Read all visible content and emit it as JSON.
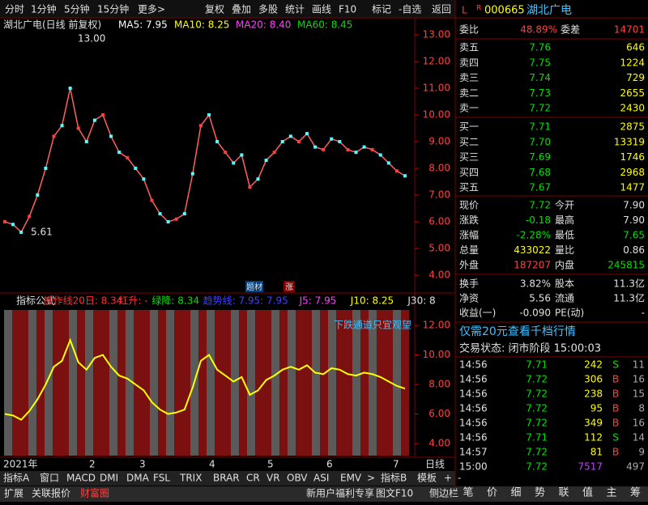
{
  "toolbar": {
    "left": [
      "分时",
      "1分钟",
      "5分钟",
      "15分钟",
      "更多>"
    ],
    "right": [
      "复权",
      "叠加",
      "多股",
      "统计",
      "画线",
      "F10",
      "标记",
      "-自选",
      "返回"
    ]
  },
  "quote_header": {
    "flags": [
      "L",
      "R"
    ],
    "code": "000665",
    "name": "湖北广电"
  },
  "main_chart": {
    "title": "湖北广电(日线 前复权)",
    "ma": [
      "MA5: 7.95",
      "MA10: 8.25",
      "MA20: 8.40",
      "MA60: 8.45"
    ],
    "ylim": [
      3.85,
      13.09
    ],
    "yticks": [
      {
        "value": 13,
        "label": "13.00"
      },
      {
        "value": 12,
        "label": "12.00"
      },
      {
        "value": 11,
        "label": "11.00"
      },
      {
        "value": 10,
        "label": "10.00"
      },
      {
        "value": 9,
        "label": "9.00"
      },
      {
        "value": 8,
        "label": "8.00"
      },
      {
        "value": 7,
        "label": "7.00"
      },
      {
        "value": 6,
        "label": "6.00"
      },
      {
        "value": 5,
        "label": "5.00"
      },
      {
        "value": 4,
        "label": "4.00"
      }
    ],
    "annotations": [
      "13.00",
      "5.61"
    ],
    "markers": [
      "题材",
      "涨"
    ],
    "closes": [
      6.0,
      5.9,
      5.61,
      6.2,
      7.0,
      8.0,
      9.2,
      9.6,
      11.0,
      9.5,
      9.0,
      9.8,
      10.0,
      9.2,
      8.6,
      8.4,
      8.0,
      7.6,
      6.8,
      6.3,
      6.0,
      6.1,
      6.3,
      7.8,
      9.6,
      10.0,
      9.0,
      8.6,
      8.2,
      8.5,
      7.3,
      7.6,
      8.3,
      8.6,
      9.0,
      9.2,
      9.0,
      9.3,
      8.8,
      8.7,
      9.1,
      9.0,
      8.7,
      8.6,
      8.8,
      8.7,
      8.5,
      8.2,
      7.9,
      7.72
    ]
  },
  "indicator_pane": {
    "header": [
      "指标公式",
      "操作线20日: 8.34",
      "红升: -",
      "绿降: 8.34",
      "趋势线: 7.95",
      ": 7.95",
      "J5: 7.95",
      "J10: 8.25",
      "J30: 8"
    ],
    "note": "下跌通道只宜观望",
    "ylim": [
      3.07,
      13.1
    ],
    "yticks": [
      {
        "value": 12,
        "label": "12.00"
      },
      {
        "value": 10,
        "label": "10.00"
      },
      {
        "value": 8,
        "label": "8.00"
      },
      {
        "value": 6,
        "label": "6.00"
      },
      {
        "value": 4,
        "label": "4.00"
      }
    ]
  },
  "x_axis": {
    "labels": [
      "2021年",
      "2",
      "3",
      "4",
      "5",
      "6",
      "7"
    ],
    "period": "日线"
  },
  "tabs": [
    "指标A",
    "窗口",
    "MACD",
    "DMI",
    "DMA",
    "FSL",
    "TRIX",
    "BRAR",
    "CR",
    "VR",
    "OBV",
    "ASI",
    "EMV",
    ">",
    "指标B",
    "模板",
    "+",
    "-"
  ],
  "footer": {
    "left": [
      "扩展",
      "关联报价",
      "财富圈"
    ],
    "right": [
      "新用户福利专享",
      "图文F10",
      "侧边栏"
    ]
  },
  "order_book": {
    "ratio": [
      "委比",
      "48.89%",
      "委差",
      "14701"
    ],
    "asks": [
      [
        "卖五",
        "7.76",
        "646"
      ],
      [
        "卖四",
        "7.75",
        "1224"
      ],
      [
        "卖三",
        "7.74",
        "729"
      ],
      [
        "卖二",
        "7.73",
        "2655"
      ],
      [
        "卖一",
        "7.72",
        "2430"
      ]
    ],
    "bids": [
      [
        "买一",
        "7.71",
        "2875"
      ],
      [
        "买二",
        "7.70",
        "13319"
      ],
      [
        "买三",
        "7.69",
        "1746"
      ],
      [
        "买四",
        "7.68",
        "2968"
      ],
      [
        "买五",
        "7.67",
        "1477"
      ]
    ]
  },
  "stats": [
    [
      "现价",
      "7.72",
      "今开",
      "7.90"
    ],
    [
      "涨跌",
      "-0.18",
      "最高",
      "7.90"
    ],
    [
      "涨幅",
      "-2.28%",
      "最低",
      "7.65"
    ],
    [
      "总量",
      "433022",
      "量比",
      "0.86"
    ],
    [
      "外盘",
      "187207",
      "内盘",
      "245815"
    ]
  ],
  "stats2": [
    [
      "换手",
      "3.82%",
      "股本",
      "11.3亿"
    ],
    [
      "净资",
      "5.56",
      "流通",
      "11.3亿"
    ],
    [
      "收益(一)",
      "-0.090",
      "PE(动)",
      "-"
    ]
  ],
  "promo": "仅需20元查看千档行情",
  "status": "交易状态: 闭市阶段 15:00:03",
  "ticks": [
    [
      "14:56",
      "7.71",
      "242",
      "S",
      "11"
    ],
    [
      "14:56",
      "7.72",
      "306",
      "B",
      "16"
    ],
    [
      "14:56",
      "7.72",
      "238",
      "B",
      "15"
    ],
    [
      "14:56",
      "7.72",
      "95",
      "B",
      "8"
    ],
    [
      "14:56",
      "7.72",
      "349",
      "B",
      "16"
    ],
    [
      "14:56",
      "7.71",
      "112",
      "S",
      "14"
    ],
    [
      "14:57",
      "7.72",
      "81",
      "B",
      "9"
    ],
    [
      "15:00",
      "7.72",
      "7517",
      "497"
    ]
  ],
  "side_icons": [
    "笔",
    "价",
    "细",
    "势",
    "联",
    "值",
    "主",
    "筹"
  ]
}
